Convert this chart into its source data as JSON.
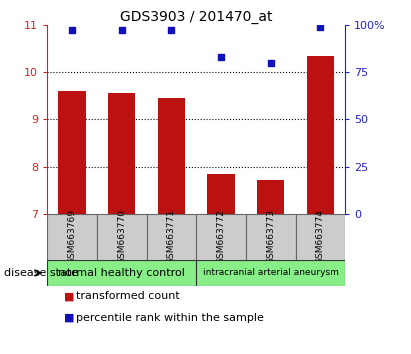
{
  "title": "GDS3903 / 201470_at",
  "samples": [
    "GSM663769",
    "GSM663770",
    "GSM663771",
    "GSM663772",
    "GSM663773",
    "GSM663774"
  ],
  "transformed_counts": [
    9.6,
    9.55,
    9.45,
    7.85,
    7.72,
    10.35
  ],
  "percentile_ranks": [
    97,
    97,
    97,
    83,
    80,
    99
  ],
  "bar_color": "#bb1111",
  "dot_color": "#1111bb",
  "ylim_left": [
    7,
    11
  ],
  "ylim_right": [
    0,
    100
  ],
  "yticks_left": [
    7,
    8,
    9,
    10,
    11
  ],
  "yticks_right": [
    0,
    25,
    50,
    75,
    100
  ],
  "yticklabels_right": [
    "0",
    "25",
    "50",
    "75",
    "100%"
  ],
  "groups": [
    {
      "label": "normal healthy control",
      "cols": [
        0,
        1,
        2
      ],
      "color": "#88ee88"
    },
    {
      "label": "intracranial arterial aneurysm",
      "cols": [
        3,
        4,
        5
      ],
      "color": "#88ee88"
    }
  ],
  "group_label": "disease state",
  "legend_bar_label": "transformed count",
  "legend_dot_label": "percentile rank within the sample",
  "bar_width": 0.55,
  "label_area_color": "#cccccc",
  "left_axis_color": "#cc2222",
  "right_axis_color": "#2222cc",
  "grid_dotted_ticks": [
    8,
    9,
    10
  ],
  "dot_size": 18
}
